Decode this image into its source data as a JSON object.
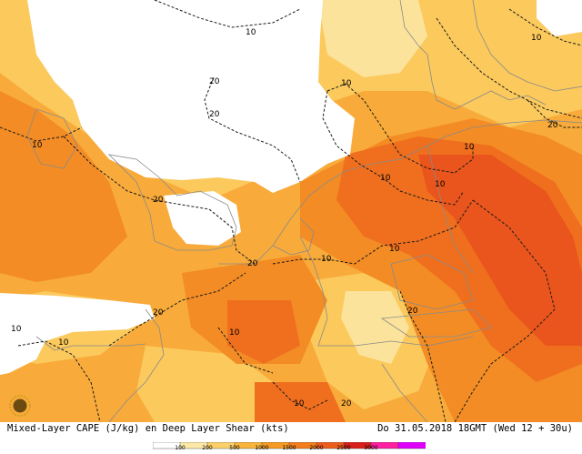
{
  "map": {
    "caption_left": "Mixed-Layer CAPE (J/kg) en Deep Layer Shear (kts)",
    "caption_right": "Do 31.05.2018 18GMT (Wed 12 + 30u)",
    "contour_labels": [
      "10",
      "10",
      "20",
      "20",
      "10",
      "10",
      "20",
      "10",
      "10",
      "10",
      "20",
      "10",
      "10",
      "20",
      "20",
      "10",
      "20",
      "10",
      "10",
      "10",
      "20"
    ]
  },
  "legend": {
    "ticks": [
      "100",
      "200",
      "500",
      "1000",
      "1500",
      "2000",
      "2500",
      "3000"
    ],
    "colors": [
      "#ffffff",
      "#fce9a8",
      "#fbd06a",
      "#f9b43c",
      "#f59a24",
      "#f27e1e",
      "#ec5c1c",
      "#d81f1a",
      "#ff1fa0",
      "#e100ff"
    ]
  },
  "colors": {
    "white_zone": "#ffffff",
    "cape_low": "#fce39c",
    "cape_light": "#fbc95c",
    "cape_mid": "#f8ab3a",
    "cape_high": "#f38c24",
    "cape_higher": "#ef6f1e",
    "cape_max": "#e9551c",
    "coast_line": "#8a8a8a",
    "contour_line": "#1a1a1a"
  },
  "icons": {
    "logo": "sun-logo-icon"
  }
}
